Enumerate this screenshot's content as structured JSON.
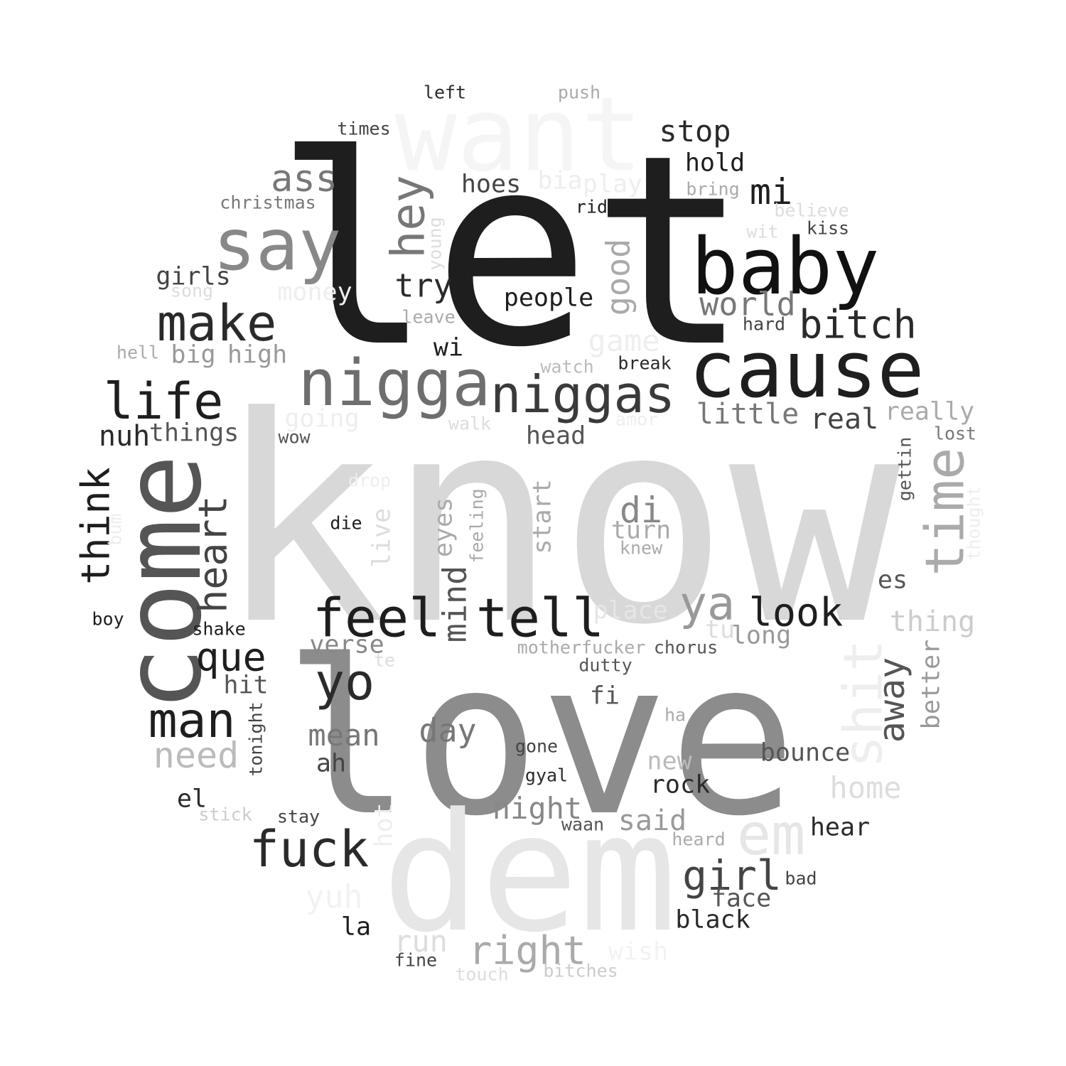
{
  "words": [
    {
      "text": "know",
      "color": "#d8d8d8",
      "rot": false
    },
    {
      "text": "let",
      "color": "#1e1e1e",
      "rot": false
    },
    {
      "text": "love",
      "color": "#8c8c8c",
      "rot": false
    },
    {
      "text": "dem",
      "color": "#e6e6e6",
      "rot": false
    },
    {
      "text": "want",
      "color": "#f5f5f5",
      "rot": false
    },
    {
      "text": "come",
      "color": "#555555",
      "rot": true
    },
    {
      "text": "cause",
      "color": "#1e1e1e",
      "rot": false
    },
    {
      "text": "baby",
      "color": "#111111",
      "rot": false
    },
    {
      "text": "say",
      "color": "#888888",
      "rot": false
    },
    {
      "text": "nigga",
      "color": "#6e6e6e",
      "rot": false
    },
    {
      "text": "niggas",
      "color": "#3a3a3a",
      "rot": false
    },
    {
      "text": "feel",
      "color": "#1e1e1e",
      "rot": false
    },
    {
      "text": "tell",
      "color": "#1e1e1e",
      "rot": false
    },
    {
      "text": "time",
      "color": "#aaaaaa",
      "rot": true
    },
    {
      "text": "life",
      "color": "#1e1e1e",
      "rot": false
    },
    {
      "text": "make",
      "color": "#2a2a2a",
      "rot": false
    },
    {
      "text": "man",
      "color": "#1e1e1e",
      "rot": false
    },
    {
      "text": "fuck",
      "color": "#2a2a2a",
      "rot": false
    },
    {
      "text": "yo",
      "color": "#2a2a2a",
      "rot": false
    },
    {
      "text": "em",
      "color": "#e6e6e6",
      "rot": false
    },
    {
      "text": "shit",
      "color": "#eeeeee",
      "rot": true
    },
    {
      "text": "hey",
      "color": "#777777",
      "rot": true
    },
    {
      "text": "ya",
      "color": "#999999",
      "rot": false
    },
    {
      "text": "look",
      "color": "#1e1e1e",
      "rot": false
    },
    {
      "text": "bitch",
      "color": "#2a2a2a",
      "rot": false
    },
    {
      "text": "girl",
      "color": "#444444",
      "rot": false
    },
    {
      "text": "think",
      "color": "#1e1e1e",
      "rot": true
    },
    {
      "text": "heart",
      "color": "#444444",
      "rot": true
    },
    {
      "text": "que",
      "color": "#1e1e1e",
      "rot": false
    },
    {
      "text": "away",
      "color": "#555555",
      "rot": true
    },
    {
      "text": "mi",
      "color": "#1e1e1e",
      "rot": false
    },
    {
      "text": "ass",
      "color": "#777777",
      "rot": false
    },
    {
      "text": "need",
      "color": "#bbbbbb",
      "rot": false
    },
    {
      "text": "world",
      "color": "#777777",
      "rot": false
    },
    {
      "text": "good",
      "color": "#aaaaaa",
      "rot": true
    },
    {
      "text": "stop",
      "color": "#2a2a2a",
      "rot": false
    },
    {
      "text": "di",
      "color": "#888888",
      "rot": false
    },
    {
      "text": "right",
      "color": "#aaaaaa",
      "rot": false
    },
    {
      "text": "mean",
      "color": "#777777",
      "rot": false
    },
    {
      "text": "day",
      "color": "#777777",
      "rot": false
    },
    {
      "text": "mind",
      "color": "#555555",
      "rot": true
    },
    {
      "text": "try",
      "color": "#2a2a2a",
      "rot": false
    },
    {
      "text": "night",
      "color": "#888888",
      "rot": false
    },
    {
      "text": "real",
      "color": "#444444",
      "rot": false
    },
    {
      "text": "little",
      "color": "#777777",
      "rot": false
    },
    {
      "text": "said",
      "color": "#999999",
      "rot": false
    },
    {
      "text": "hold",
      "color": "#1e1e1e",
      "rot": false
    },
    {
      "text": "thing",
      "color": "#cccccc",
      "rot": false
    },
    {
      "text": "home",
      "color": "#dddddd",
      "rot": false
    },
    {
      "text": "really",
      "color": "#aaaaaa",
      "rot": false
    },
    {
      "text": "run",
      "color": "#dddddd",
      "rot": false
    },
    {
      "text": "yuh",
      "color": "#f2f2f2",
      "rot": false
    },
    {
      "text": "game",
      "color": "#eeeeee",
      "rot": false
    },
    {
      "text": "people",
      "color": "#1e1e1e",
      "rot": false
    },
    {
      "text": "face",
      "color": "#555555",
      "rot": false
    },
    {
      "text": "black",
      "color": "#2a2a2a",
      "rot": false
    },
    {
      "text": "bounce",
      "color": "#555555",
      "rot": false
    },
    {
      "text": "hear",
      "color": "#2a2a2a",
      "rot": false
    },
    {
      "text": "big",
      "color": "#999999",
      "rot": false
    },
    {
      "text": "high",
      "color": "#999999",
      "rot": false
    },
    {
      "text": "nuh",
      "color": "#2a2a2a",
      "rot": false
    },
    {
      "text": "things",
      "color": "#555555",
      "rot": false
    },
    {
      "text": "girls",
      "color": "#444444",
      "rot": false
    },
    {
      "text": "head",
      "color": "#555555",
      "rot": false
    },
    {
      "text": "hoes",
      "color": "#444444",
      "rot": false
    },
    {
      "text": "long",
      "color": "#999999",
      "rot": false
    },
    {
      "text": "tu",
      "color": "#dddddd",
      "rot": false
    },
    {
      "text": "turn",
      "color": "#aaaaaa",
      "rot": false
    },
    {
      "text": "verse",
      "color": "#888888",
      "rot": false
    },
    {
      "text": "place",
      "color": "#e6e6e6",
      "rot": false
    },
    {
      "text": "new",
      "color": "#bbbbbb",
      "rot": false
    },
    {
      "text": "rock",
      "color": "#2a2a2a",
      "rot": false
    },
    {
      "text": "hit",
      "color": "#555555",
      "rot": false
    },
    {
      "text": "ah",
      "color": "#444444",
      "rot": false
    },
    {
      "text": "wi",
      "color": "#1e1e1e",
      "rot": false
    },
    {
      "text": "fi",
      "color": "#555555",
      "rot": false
    },
    {
      "text": "es",
      "color": "#555555",
      "rot": false
    },
    {
      "text": "el",
      "color": "#2a2a2a",
      "rot": false
    },
    {
      "text": "la",
      "color": "#1e1e1e",
      "rot": false
    },
    {
      "text": "live",
      "color": "#dddddd",
      "rot": true
    },
    {
      "text": "eyes",
      "color": "#aaaaaa",
      "rot": true
    },
    {
      "text": "start",
      "color": "#aaaaaa",
      "rot": true
    },
    {
      "text": "better",
      "color": "#999999",
      "rot": true
    },
    {
      "text": "bia",
      "color": "#eeeeee",
      "rot": false
    },
    {
      "text": "play",
      "color": "#eeeeee",
      "rot": false
    },
    {
      "text": "money",
      "color": "#eeeeee",
      "rot": false
    },
    {
      "text": "going",
      "color": "#eeeeee",
      "rot": false
    },
    {
      "text": "wish",
      "color": "#f2f2f2",
      "rot": false
    },
    {
      "text": "left",
      "color": "#2a2a2a",
      "rot": false
    },
    {
      "text": "push",
      "color": "#aaaaaa",
      "rot": false
    },
    {
      "text": "times",
      "color": "#444444",
      "rot": false
    },
    {
      "text": "christmas",
      "color": "#777777",
      "rot": false
    },
    {
      "text": "ride",
      "color": "#1e1e1e",
      "rot": false
    },
    {
      "text": "bring",
      "color": "#aaaaaa",
      "rot": false
    },
    {
      "text": "believe",
      "color": "#dddddd",
      "rot": false
    },
    {
      "text": "kiss",
      "color": "#444444",
      "rot": false
    },
    {
      "text": "wit",
      "color": "#dddddd",
      "rot": false
    },
    {
      "text": "young",
      "color": "#dddddd",
      "rot": true
    },
    {
      "text": "song",
      "color": "#dddddd",
      "rot": false
    },
    {
      "text": "leave",
      "color": "#aaaaaa",
      "rot": false
    },
    {
      "text": "hard",
      "color": "#444444",
      "rot": false
    },
    {
      "text": "hell",
      "color": "#aaaaaa",
      "rot": false
    },
    {
      "text": "watch",
      "color": "#bbbbbb",
      "rot": false
    },
    {
      "text": "break",
      "color": "#2a2a2a",
      "rot": false
    },
    {
      "text": "walk",
      "color": "#dddddd",
      "rot": false
    },
    {
      "text": "amor",
      "color": "#eeeeee",
      "rot": false
    },
    {
      "text": "wow",
      "color": "#555555",
      "rot": false
    },
    {
      "text": "lost",
      "color": "#777777",
      "rot": false
    },
    {
      "text": "gettin",
      "color": "#555555",
      "rot": true
    },
    {
      "text": "drop",
      "color": "#eeeeee",
      "rot": false
    },
    {
      "text": "die",
      "color": "#1e1e1e",
      "rot": false
    },
    {
      "text": "feeling",
      "color": "#aaaaaa",
      "rot": true
    },
    {
      "text": "knew",
      "color": "#aaaaaa",
      "rot": false
    },
    {
      "text": "bum",
      "color": "#eeeeee",
      "rot": true
    },
    {
      "text": "thought",
      "color": "#eeeeee",
      "rot": true
    },
    {
      "text": "boy",
      "color": "#1e1e1e",
      "rot": false
    },
    {
      "text": "shake",
      "color": "#1e1e1e",
      "rot": false
    },
    {
      "text": "motherfucker",
      "color": "#aaaaaa",
      "rot": false
    },
    {
      "text": "chorus",
      "color": "#555555",
      "rot": false
    },
    {
      "text": "te",
      "color": "#dddddd",
      "rot": false
    },
    {
      "text": "dutty",
      "color": "#555555",
      "rot": false
    },
    {
      "text": "tonight",
      "color": "#444444",
      "rot": true
    },
    {
      "text": "ha",
      "color": "#aaaaaa",
      "rot": false
    },
    {
      "text": "gone",
      "color": "#444444",
      "rot": false
    },
    {
      "text": "gyal",
      "color": "#2a2a2a",
      "rot": false
    },
    {
      "text": "stick",
      "color": "#cccccc",
      "rot": false
    },
    {
      "text": "stay",
      "color": "#444444",
      "rot": false
    },
    {
      "text": "hot",
      "color": "#eeeeee",
      "rot": true
    },
    {
      "text": "waan",
      "color": "#555555",
      "rot": false
    },
    {
      "text": "heard",
      "color": "#aaaaaa",
      "rot": false
    },
    {
      "text": "bad",
      "color": "#444444",
      "rot": false
    },
    {
      "text": "fine",
      "color": "#444444",
      "rot": false
    },
    {
      "text": "touch",
      "color": "#dddddd",
      "rot": false
    },
    {
      "text": "bitches",
      "color": "#cccccc",
      "rot": false
    }
  ]
}
